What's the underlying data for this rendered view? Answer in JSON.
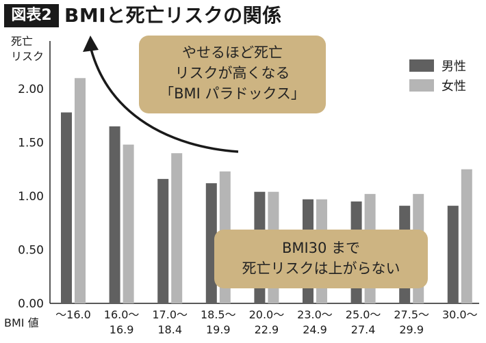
{
  "header": {
    "figure_label": "図表2",
    "title": "BMIと死亡リスクの関係"
  },
  "callouts": [
    {
      "lines": [
        "やせるほど死亡",
        "リスクが高くなる",
        "「BMI パラドックス」"
      ]
    },
    {
      "lines": [
        "BMI30 まで",
        "死亡リスクは上がらない"
      ]
    }
  ],
  "colors": {
    "male": "#606060",
    "female": "#b5b5b5",
    "callout_bg": "#cdb482",
    "badge_bg": "#1a1a1a"
  },
  "chart_data": {
    "type": "bar",
    "title": "BMIと死亡リスクの関係",
    "ylabel": "死亡\nリスク",
    "xlabel": "BMI 値",
    "ylim": [
      0,
      2.0
    ],
    "yticks": [
      "0.00",
      "0.50",
      "1.00",
      "1.50",
      "2.00"
    ],
    "categories": [
      [
        "〜16.0"
      ],
      [
        "16.0〜",
        "16.9"
      ],
      [
        "17.0〜",
        "18.4"
      ],
      [
        "18.5〜",
        "19.9"
      ],
      [
        "20.0〜",
        "22.9"
      ],
      [
        "23.0〜",
        "24.9"
      ],
      [
        "25.0〜",
        "27.4"
      ],
      [
        "27.5〜",
        "29.9"
      ],
      [
        "30.0〜"
      ]
    ],
    "series": [
      {
        "name": "男性",
        "values": [
          1.78,
          1.65,
          1.16,
          1.12,
          1.04,
          0.97,
          0.95,
          0.91,
          0.91
        ]
      },
      {
        "name": "女性",
        "values": [
          2.1,
          1.48,
          1.4,
          1.23,
          1.04,
          0.97,
          1.02,
          1.02,
          1.25
        ]
      }
    ],
    "legend_position": "top-right",
    "grid": false
  }
}
